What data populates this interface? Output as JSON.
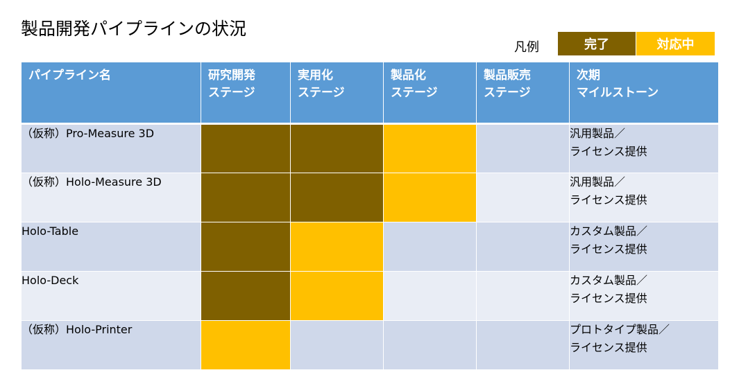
{
  "title": "製品開発パイプラインの状況",
  "legend": {
    "label": "凡例",
    "done": "完了",
    "in_progress": "対応中"
  },
  "colors": {
    "done": "#7f6000",
    "in_progress": "#ffc000",
    "header": "#5b9bd5",
    "row_odd": "#cfd8ea",
    "row_even": "#e9edf5"
  },
  "headers": {
    "name": "パイプライン名",
    "research": [
      "研究開発",
      "ステージ"
    ],
    "practical": [
      "実用化",
      "ステージ"
    ],
    "productization": [
      "製品化",
      "ステージ"
    ],
    "sales": [
      "製品販売",
      "ステージ"
    ],
    "milestone": [
      "次期",
      "マイルストーン"
    ]
  },
  "rows": [
    {
      "name": "（仮称）Pro-Measure 3D",
      "stages": [
        "done",
        "done",
        "in_progress",
        "none"
      ],
      "milestone": [
        "汎用製品／",
        "ライセンス提供"
      ]
    },
    {
      "name": "（仮称）Holo-Measure 3D",
      "stages": [
        "done",
        "done",
        "in_progress",
        "none"
      ],
      "milestone": [
        "汎用製品／",
        "ライセンス提供"
      ]
    },
    {
      "name": "Holo-Table",
      "stages": [
        "done",
        "in_progress",
        "none",
        "none"
      ],
      "milestone": [
        "カスタム製品／",
        "ライセンス提供"
      ]
    },
    {
      "name": "Holo-Deck",
      "stages": [
        "done",
        "in_progress",
        "none",
        "none"
      ],
      "milestone": [
        "カスタム製品／",
        "ライセンス提供"
      ]
    },
    {
      "name": "（仮称）Holo-Printer",
      "stages": [
        "in_progress",
        "none",
        "none",
        "none"
      ],
      "milestone": [
        "プロトタイプ製品／",
        "ライセンス提供"
      ]
    }
  ]
}
